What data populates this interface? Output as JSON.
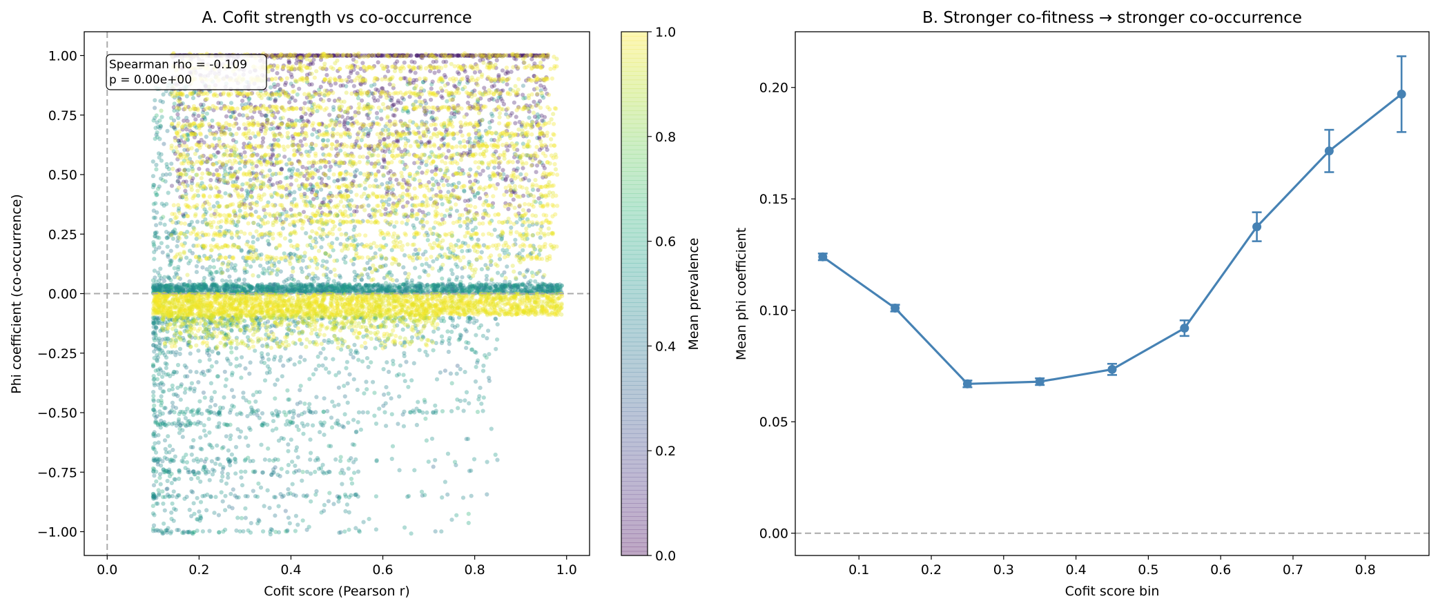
{
  "chart_data": [
    {
      "type": "scatter",
      "title": "A. Cofit strength vs co-occurrence",
      "xlabel": "Cofit score (Pearson r)",
      "ylabel": "Phi coefficient (co-occurrence)",
      "xlim": [
        -0.05,
        1.05
      ],
      "ylim": [
        -1.1,
        1.1
      ],
      "xticks": [
        0.0,
        0.2,
        0.4,
        0.6,
        0.8,
        1.0
      ],
      "xtick_labels": [
        "0.0",
        "0.2",
        "0.4",
        "0.6",
        "0.8",
        "1.0"
      ],
      "yticks": [
        -1.0,
        -0.75,
        -0.5,
        -0.25,
        0.0,
        0.25,
        0.5,
        0.75,
        1.0
      ],
      "ytick_labels": [
        "−1.00",
        "−0.75",
        "−0.50",
        "−0.25",
        "0.00",
        "0.25",
        "0.50",
        "0.75",
        "1.00"
      ],
      "reference_lines": {
        "x": 0.0,
        "y": 0.0,
        "style": "dashed",
        "color": "#aaaaaa"
      },
      "annotation": {
        "line1": "Spearman rho = -0.109",
        "line2": "p = 0.00e+00"
      },
      "colorbar": {
        "label": "Mean prevalence",
        "colormap": "viridis",
        "alpha": 0.35,
        "range": [
          0.0,
          1.0
        ],
        "ticks": [
          0.0,
          0.2,
          0.4,
          0.6,
          0.8,
          1.0
        ],
        "tick_labels": [
          "0.0",
          "0.2",
          "0.4",
          "0.6",
          "0.8",
          "1.0"
        ]
      },
      "point_clusters": [
        {
          "group": "band near zero",
          "x_range": [
            0.1,
            0.99
          ],
          "y_range": [
            -0.09,
            0.0
          ],
          "prevalence": 0.95
        },
        {
          "group": "positive low-prevalence",
          "x_range": [
            0.14,
            0.96
          ],
          "y_range": [
            0.3,
            1.0
          ],
          "prevalence": 0.05
        },
        {
          "group": "positive high-prevalence bands",
          "x_range": [
            0.14,
            0.98
          ],
          "y_range": [
            0.3,
            1.0
          ],
          "prevalence": 0.98
        },
        {
          "group": "negative mid-prevalence",
          "x_range": [
            0.1,
            0.85
          ],
          "y_range": [
            -1.0,
            -0.1
          ],
          "prevalence": 0.5
        }
      ]
    },
    {
      "type": "line",
      "title": "B. Stronger co-fitness → stronger co-occurrence",
      "xlabel": "Cofit score bin",
      "ylabel": "Mean phi coefficient",
      "x": [
        0.05,
        0.15,
        0.25,
        0.35,
        0.45,
        0.55,
        0.65,
        0.75,
        0.85
      ],
      "y": [
        0.124,
        0.101,
        0.067,
        0.068,
        0.0735,
        0.092,
        0.1375,
        0.1715,
        0.197
      ],
      "yerr": [
        0.0015,
        0.0015,
        0.0015,
        0.0015,
        0.0025,
        0.0035,
        0.0065,
        0.0095,
        0.017
      ],
      "xlim": [
        0.012,
        0.888
      ],
      "ylim": [
        -0.01,
        0.225
      ],
      "xticks": [
        0.1,
        0.2,
        0.3,
        0.4,
        0.5,
        0.6,
        0.7,
        0.8
      ],
      "xtick_labels": [
        "0.1",
        "0.2",
        "0.3",
        "0.4",
        "0.5",
        "0.6",
        "0.7",
        "0.8"
      ],
      "yticks": [
        0.0,
        0.05,
        0.1,
        0.15,
        0.2
      ],
      "ytick_labels": [
        "0.00",
        "0.05",
        "0.10",
        "0.15",
        "0.20"
      ],
      "reference_line_y": 0.0,
      "color": "#4682b4"
    }
  ]
}
